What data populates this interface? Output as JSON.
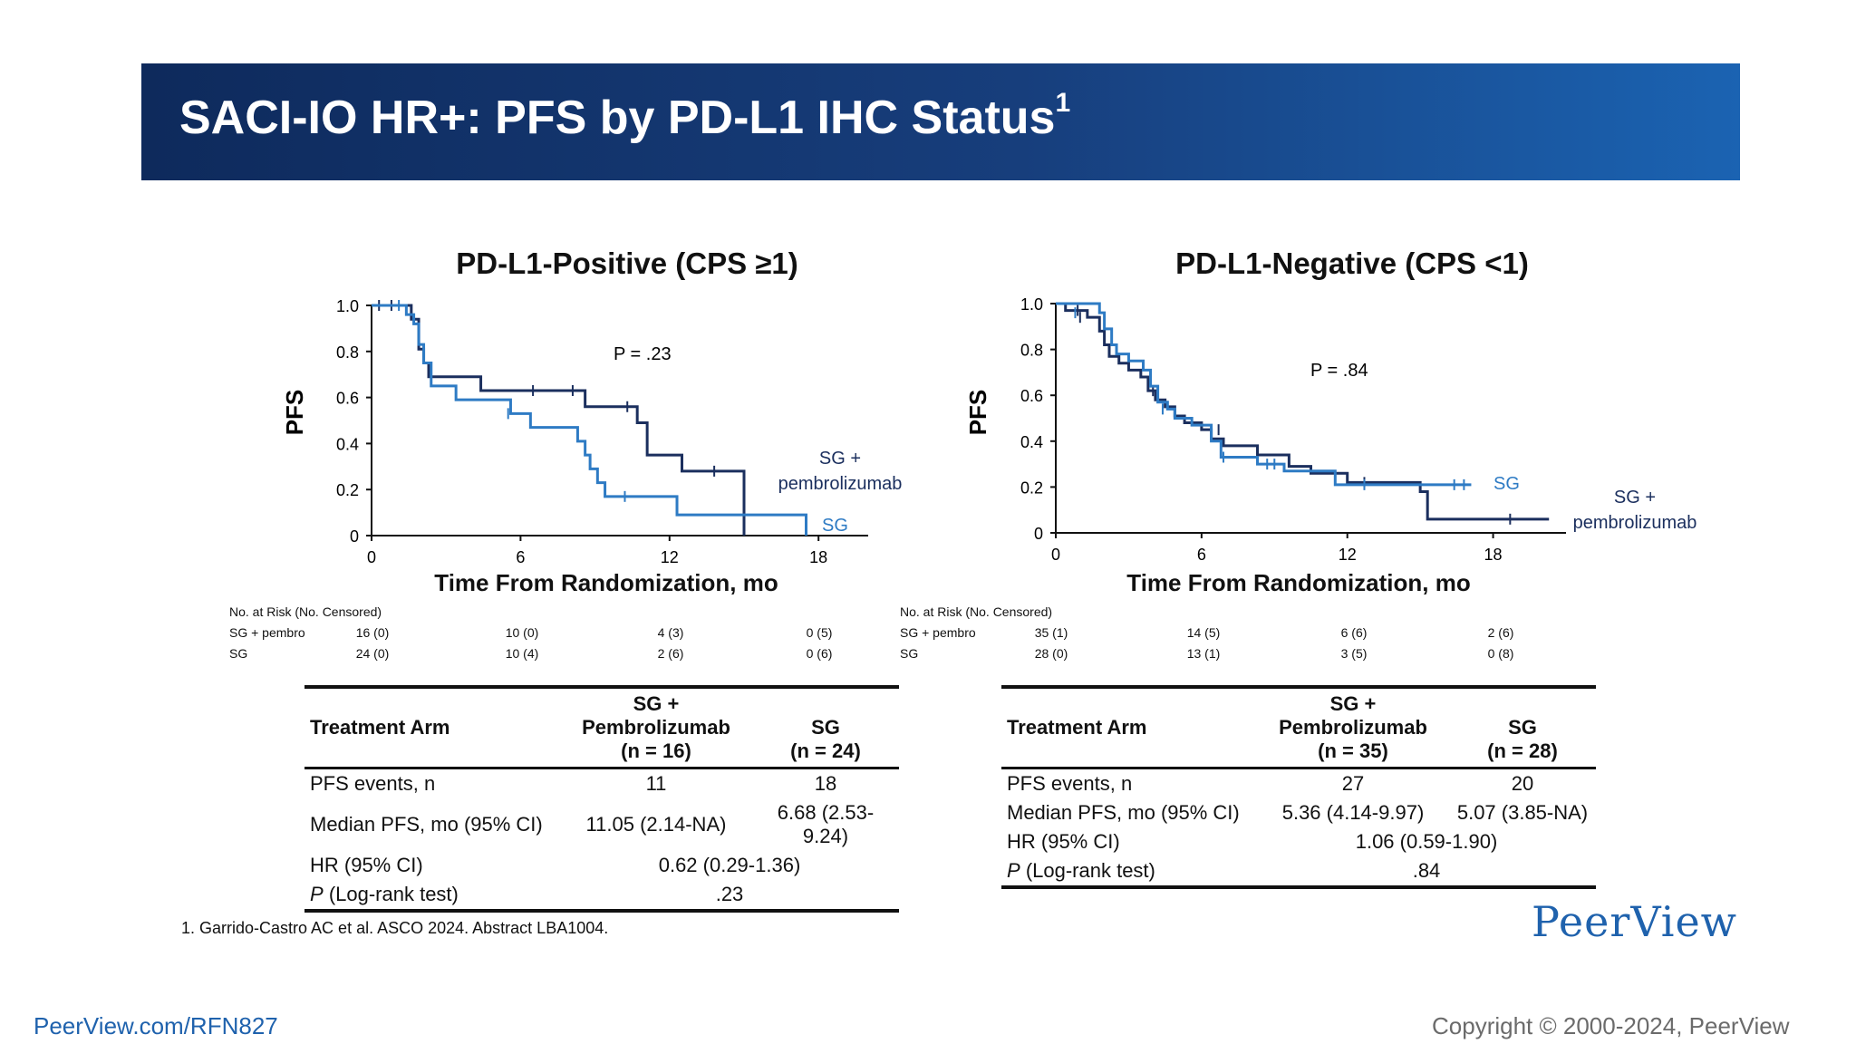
{
  "banner": {
    "title": "SACI-IO HR+: PFS by PD-L1 IHC Status",
    "sup": "1"
  },
  "charts": [
    {
      "title": "PD-L1-Positive (CPS ≥1)",
      "ylabel": "PFS",
      "xlabel": "Time From Randomization, mo",
      "p_text": "P = .23",
      "label_pembro": [
        "SG +",
        "pembrolizumab"
      ],
      "label_sg": "SG",
      "risk": {
        "header": "No. at Risk (No. Censored)",
        "rows": [
          {
            "label": "SG + pembro",
            "values": [
              "16 (0)",
              "10 (0)",
              "4 (3)",
              "0 (5)"
            ]
          },
          {
            "label": "SG",
            "values": [
              "24 (0)",
              "10 (4)",
              "2 (6)",
              "0 (6)"
            ]
          }
        ]
      },
      "table": {
        "headers": [
          "Treatment Arm",
          "SG + Pembrolizumab",
          "(n = 16)",
          "SG",
          "(n = 24)"
        ],
        "rows": [
          [
            "PFS events, n",
            "11",
            "18"
          ],
          [
            "Median PFS, mo (95% CI)",
            "11.05 (2.14-NA)",
            "6.68 (2.53-9.24)"
          ],
          [
            "HR (95% CI)",
            "0.62 (0.29-1.36)"
          ],
          [
            "(Log-rank test)",
            ".23"
          ]
        ]
      }
    },
    {
      "title": "PD-L1-Negative (CPS <1)",
      "ylabel": "PFS",
      "xlabel": "Time From Randomization, mo",
      "p_text": "P = .84",
      "label_pembro": [
        "SG +",
        "pembrolizumab"
      ],
      "label_sg": "SG",
      "risk": {
        "header": "No. at Risk (No. Censored)",
        "rows": [
          {
            "label": "SG + pembro",
            "values": [
              "35 (1)",
              "14 (5)",
              "6 (6)",
              "2 (6)"
            ]
          },
          {
            "label": "SG",
            "values": [
              "28 (0)",
              "13 (1)",
              "3 (5)",
              "0 (8)"
            ]
          }
        ]
      },
      "table": {
        "headers": [
          "Treatment Arm",
          "SG + Pembrolizumab",
          "(n = 35)",
          "SG",
          "(n = 28)"
        ],
        "rows": [
          [
            "PFS events, n",
            "27",
            "20"
          ],
          [
            "Median PFS, mo (95% CI)",
            "5.36 (4.14-9.97)",
            "5.07 (3.85-NA)"
          ],
          [
            "HR (95% CI)",
            "1.06 (0.59-1.90)"
          ],
          [
            "(Log-rank test)",
            ".84"
          ]
        ]
      }
    }
  ],
  "p_italic": "P",
  "chart_data": [
    {
      "type": "line",
      "title": "PD-L1-Positive (CPS ≥1)",
      "xlabel": "Time From Randomization, mo",
      "ylabel": "PFS",
      "xlim": [
        0,
        20
      ],
      "ylim": [
        0,
        1.0
      ],
      "xticks": [
        0,
        6,
        12,
        18
      ],
      "yticks": [
        0,
        0.2,
        0.4,
        0.6,
        0.8,
        1.0
      ],
      "ytick_labels": [
        "0",
        "0.2",
        "0.4",
        "0.6",
        "0.8",
        "1.0"
      ],
      "series": [
        {
          "name": "SG + pembrolizumab",
          "color": "#1b2f5e",
          "steps": [
            [
              0,
              1.0
            ],
            [
              1.6,
              0.94
            ],
            [
              1.9,
              0.81
            ],
            [
              2.1,
              0.75
            ],
            [
              2.3,
              0.69
            ],
            [
              4.4,
              0.63
            ],
            [
              8.6,
              0.56
            ],
            [
              10.7,
              0.49
            ],
            [
              11.1,
              0.35
            ],
            [
              12.5,
              0.28
            ],
            [
              15.0,
              0.0
            ],
            [
              15.0,
              0.0
            ]
          ],
          "censor": [
            [
              0.3,
              1.0
            ],
            [
              0.8,
              1.0
            ],
            [
              6.5,
              0.63
            ],
            [
              8.1,
              0.63
            ],
            [
              10.3,
              0.56
            ],
            [
              13.8,
              0.28
            ]
          ]
        },
        {
          "name": "SG",
          "color": "#2e7bc4",
          "steps": [
            [
              0,
              1.0
            ],
            [
              1.4,
              0.96
            ],
            [
              1.7,
              0.92
            ],
            [
              1.9,
              0.83
            ],
            [
              2.1,
              0.75
            ],
            [
              2.4,
              0.65
            ],
            [
              3.4,
              0.59
            ],
            [
              5.6,
              0.53
            ],
            [
              6.4,
              0.47
            ],
            [
              8.3,
              0.41
            ],
            [
              8.6,
              0.35
            ],
            [
              8.8,
              0.29
            ],
            [
              9.1,
              0.23
            ],
            [
              9.4,
              0.17
            ],
            [
              12.3,
              0.09
            ],
            [
              17.5,
              0.0
            ],
            [
              17.5,
              0.0
            ]
          ],
          "censor": [
            [
              1.1,
              1.0
            ],
            [
              5.5,
              0.53
            ],
            [
              10.2,
              0.17
            ]
          ]
        }
      ]
    },
    {
      "type": "line",
      "title": "PD-L1-Negative (CPS <1)",
      "xlabel": "Time From Randomization, mo",
      "ylabel": "PFS",
      "xlim": [
        0,
        21
      ],
      "ylim": [
        0,
        1.0
      ],
      "xticks": [
        0,
        6,
        12,
        18
      ],
      "yticks": [
        0,
        0.2,
        0.4,
        0.6,
        0.8,
        1.0
      ],
      "ytick_labels": [
        "0",
        "0.2",
        "0.4",
        "0.6",
        "0.8",
        "1.0"
      ],
      "series": [
        {
          "name": "SG + pembrolizumab",
          "color": "#1b2f5e",
          "steps": [
            [
              0,
              1.0
            ],
            [
              0.4,
              0.97
            ],
            [
              1.3,
              0.94
            ],
            [
              1.8,
              0.88
            ],
            [
              2.0,
              0.82
            ],
            [
              2.2,
              0.77
            ],
            [
              2.6,
              0.74
            ],
            [
              3.0,
              0.71
            ],
            [
              3.5,
              0.68
            ],
            [
              3.8,
              0.62
            ],
            [
              4.1,
              0.58
            ],
            [
              4.5,
              0.55
            ],
            [
              4.9,
              0.51
            ],
            [
              5.3,
              0.48
            ],
            [
              6.0,
              0.45
            ],
            [
              6.4,
              0.41
            ],
            [
              6.9,
              0.38
            ],
            [
              8.3,
              0.34
            ],
            [
              9.6,
              0.29
            ],
            [
              10.5,
              0.26
            ],
            [
              12.0,
              0.22
            ],
            [
              15.0,
              0.18
            ],
            [
              15.3,
              0.06
            ],
            [
              20.3,
              0.06
            ]
          ],
          "censor": [
            [
              0.9,
              0.97
            ],
            [
              1.0,
              0.94
            ],
            [
              4.0,
              0.62
            ],
            [
              6.7,
              0.45
            ],
            [
              12.7,
              0.22
            ],
            [
              18.7,
              0.06
            ]
          ]
        },
        {
          "name": "SG",
          "color": "#2e7bc4",
          "steps": [
            [
              0,
              1.0
            ],
            [
              1.8,
              0.96
            ],
            [
              2.0,
              0.89
            ],
            [
              2.3,
              0.82
            ],
            [
              2.5,
              0.78
            ],
            [
              3.0,
              0.75
            ],
            [
              3.6,
              0.71
            ],
            [
              3.9,
              0.64
            ],
            [
              4.2,
              0.57
            ],
            [
              4.6,
              0.54
            ],
            [
              4.9,
              0.5
            ],
            [
              5.6,
              0.47
            ],
            [
              6.4,
              0.4
            ],
            [
              6.8,
              0.33
            ],
            [
              8.3,
              0.3
            ],
            [
              9.4,
              0.27
            ],
            [
              11.5,
              0.21
            ],
            [
              17.1,
              0.21
            ]
          ],
          "censor": [
            [
              0.8,
              0.96
            ],
            [
              4.4,
              0.54
            ],
            [
              6.9,
              0.33
            ],
            [
              8.7,
              0.3
            ],
            [
              9.0,
              0.3
            ],
            [
              12.7,
              0.21
            ],
            [
              16.4,
              0.21
            ],
            [
              16.8,
              0.21
            ]
          ]
        }
      ]
    }
  ],
  "footnote": "1. Garrido-Castro AC et al. ASCO 2024. Abstract LBA1004.",
  "logo": "PeerView",
  "footer": {
    "url": "PeerView.com/RFN827",
    "copyright": "Copyright © 2000-2024, PeerView"
  }
}
